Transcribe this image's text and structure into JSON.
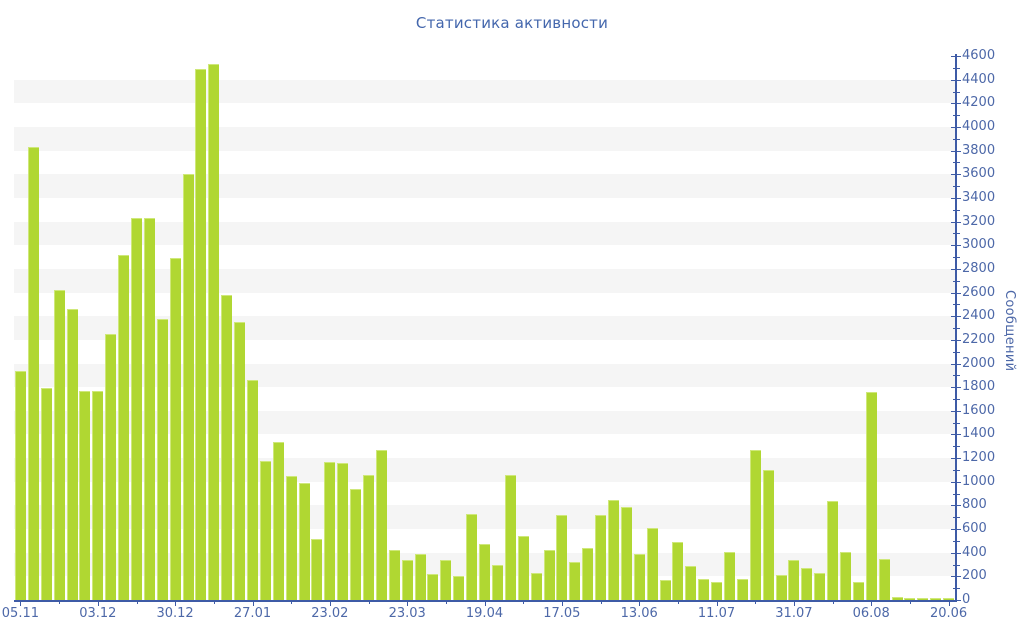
{
  "chart_data": {
    "type": "bar",
    "title": "Статистика активности",
    "ylabel": "Сообщений",
    "xlabel": "",
    "ylim": [
      0,
      4600
    ],
    "y_major_step": 200,
    "y_minor_step": 100,
    "grid": "horizontal-stripes",
    "legend": "none",
    "bar_color": "#b0d732",
    "bar_edge_color": "#cfe87a",
    "axis_color": "#3e5ba6",
    "label_color": "#4d68a8",
    "title_color": "#4467ad",
    "stripe_color": "#f5f5f5",
    "background_color": "#ffffff",
    "x_label_every": 6,
    "x_tick_labels": [
      "05.11",
      "03.12",
      "30.12",
      "27.01",
      "23.02",
      "23.03",
      "19.04",
      "17.05",
      "13.06",
      "11.07",
      "31.07",
      "06.08",
      "20.06"
    ],
    "values": [
      1940,
      3830,
      1790,
      2620,
      2460,
      1770,
      1770,
      2250,
      2920,
      3230,
      3230,
      2380,
      2890,
      3600,
      4490,
      4530,
      2580,
      2350,
      1860,
      1180,
      1340,
      1050,
      990,
      520,
      1170,
      1160,
      940,
      1060,
      1270,
      420,
      340,
      390,
      220,
      340,
      200,
      730,
      470,
      300,
      1060,
      540,
      230,
      420,
      720,
      320,
      440,
      720,
      850,
      790,
      390,
      610,
      170,
      490,
      290,
      180,
      150,
      410,
      180,
      1270,
      1100,
      210,
      340,
      270,
      230,
      840,
      410,
      150,
      1760,
      350,
      30,
      20,
      20,
      20,
      15
    ]
  }
}
